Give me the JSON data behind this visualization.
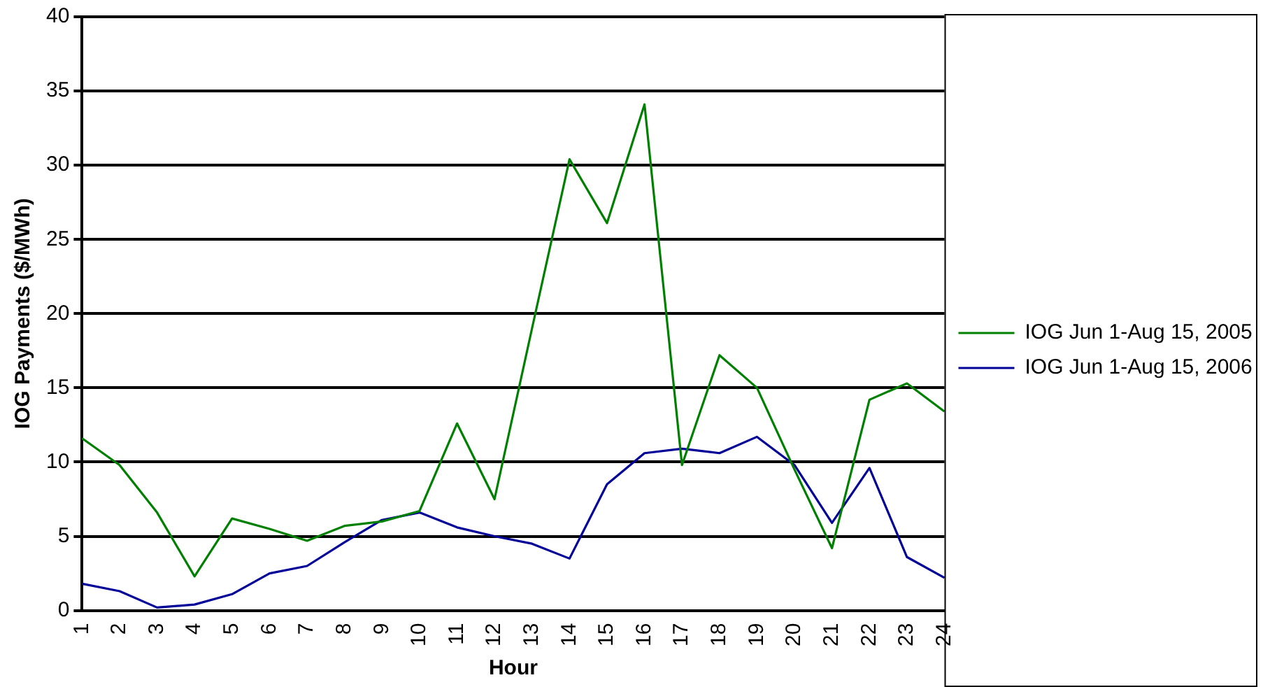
{
  "chart_data": {
    "type": "line",
    "xlabel": "Hour",
    "ylabel": "IOG Payments ($/MWh)",
    "categories": [
      "1",
      "2",
      "3",
      "4",
      "5",
      "6",
      "7",
      "8",
      "9",
      "10",
      "11",
      "12",
      "13",
      "14",
      "15",
      "16",
      "17",
      "18",
      "19",
      "20",
      "21",
      "22",
      "23",
      "24"
    ],
    "series": [
      {
        "name": "IOG Jun 1-Aug 15, 2005",
        "color": "#008000",
        "values": [
          11.6,
          9.8,
          6.6,
          2.3,
          6.2,
          5.5,
          4.7,
          5.7,
          6.0,
          6.7,
          12.6,
          7.5,
          19,
          30.4,
          26.1,
          34.1,
          9.8,
          17.2,
          15.0,
          9.5,
          4.2,
          14.2,
          15.3,
          13.4
        ]
      },
      {
        "name": "IOG Jun 1-Aug 15, 2006",
        "color": "#000099",
        "values": [
          1.8,
          1.3,
          0.2,
          0.4,
          1.1,
          2.5,
          3.0,
          4.6,
          6.1,
          6.6,
          5.6,
          5.0,
          4.5,
          3.5,
          8.5,
          10.6,
          10.9,
          10.6,
          11.7,
          9.8,
          5.9,
          9.6,
          3.6,
          2.2
        ]
      }
    ],
    "ylim": [
      0,
      40
    ],
    "yticks": [
      0,
      5,
      10,
      15,
      20,
      25,
      30,
      35,
      40
    ],
    "grid": "y",
    "legend": "right",
    "marker": "none",
    "line_style": "solid"
  }
}
